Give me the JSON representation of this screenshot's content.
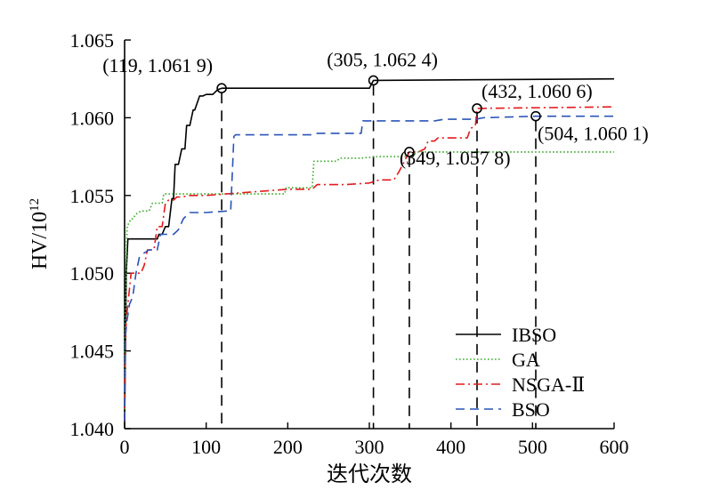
{
  "chart_data": {
    "type": "line",
    "xlabel": "迭代次数",
    "ylabel": "HV/10",
    "ylabel_sup": "12",
    "xlim": [
      0,
      600
    ],
    "ylim": [
      1.04,
      1.065
    ],
    "x_ticks": [
      "0",
      "100",
      "200",
      "300",
      "400",
      "500",
      "600"
    ],
    "y_ticks": [
      "1.040",
      "1.045",
      "1.050",
      "1.055",
      "1.060",
      "1.065"
    ],
    "grid": false,
    "legend_position": "bottom-right",
    "series": [
      {
        "name": "IBSO",
        "color": "#000000",
        "dash": "solid",
        "x": [
          0,
          1,
          2,
          4,
          40,
          42,
          46,
          50,
          54,
          58,
          60,
          62,
          66,
          70,
          74,
          76,
          80,
          84,
          86,
          92,
          96,
          100,
          108,
          114,
          119,
          300,
          305,
          600
        ],
        "y": [
          1.0405,
          1.045,
          1.05,
          1.0522,
          1.0522,
          1.0525,
          1.0525,
          1.053,
          1.053,
          1.0548,
          1.0548,
          1.057,
          1.057,
          1.058,
          1.058,
          1.0595,
          1.0595,
          1.0605,
          1.0605,
          1.0614,
          1.0614,
          1.0615,
          1.0615,
          1.0618,
          1.0619,
          1.0619,
          1.0624,
          1.0625
        ]
      },
      {
        "name": "GA",
        "color": "#3aab2a",
        "dash": "dotted",
        "x": [
          0,
          1,
          3,
          8,
          10,
          14,
          20,
          30,
          34,
          46,
          48,
          100,
          150,
          196,
          198,
          230,
          232,
          260,
          264,
          290,
          310,
          350,
          360,
          600
        ],
        "y": [
          1.041,
          1.048,
          1.053,
          1.0535,
          1.0535,
          1.0538,
          1.054,
          1.054,
          1.0545,
          1.0545,
          1.0551,
          1.0551,
          1.0551,
          1.0551,
          1.0555,
          1.0555,
          1.0572,
          1.0572,
          1.0574,
          1.0574,
          1.0575,
          1.0575,
          1.0578,
          1.0578
        ]
      },
      {
        "name": "NSGA-Ⅱ",
        "color": "#e41a1c",
        "dash": "dashdot",
        "x": [
          0,
          1,
          2,
          3,
          4,
          6,
          8,
          10,
          20,
          24,
          28,
          36,
          40,
          46,
          50,
          54,
          60,
          64,
          70,
          80,
          100,
          150,
          200,
          230,
          236,
          270,
          300,
          312,
          330,
          336,
          346,
          349,
          360,
          368,
          372,
          380,
          384,
          390,
          420,
          424,
          430,
          432,
          600
        ],
        "y": [
          1.0405,
          1.045,
          1.047,
          1.0475,
          1.048,
          1.049,
          1.05,
          1.05,
          1.05,
          1.0505,
          1.0515,
          1.0515,
          1.053,
          1.053,
          1.0545,
          1.0547,
          1.0547,
          1.0549,
          1.0549,
          1.055,
          1.055,
          1.0552,
          1.0554,
          1.0554,
          1.0557,
          1.0557,
          1.0558,
          1.056,
          1.056,
          1.0565,
          1.0575,
          1.0578,
          1.0578,
          1.058,
          1.0585,
          1.0585,
          1.0587,
          1.0587,
          1.0587,
          1.0593,
          1.0595,
          1.0606,
          1.0607
        ]
      },
      {
        "name": "BSO",
        "color": "#2a54b8",
        "dash": "dashed",
        "x": [
          0,
          1,
          3,
          6,
          10,
          14,
          18,
          24,
          30,
          40,
          44,
          50,
          60,
          66,
          72,
          80,
          100,
          126,
          130,
          134,
          136,
          150,
          200,
          230,
          236,
          280,
          290,
          292,
          300,
          304,
          380,
          392,
          430,
          440,
          504,
          600
        ],
        "y": [
          1.0405,
          1.046,
          1.047,
          1.048,
          1.0485,
          1.05,
          1.051,
          1.0513,
          1.0515,
          1.0515,
          1.0525,
          1.0525,
          1.0525,
          1.0528,
          1.0535,
          1.0539,
          1.0539,
          1.054,
          1.054,
          1.0588,
          1.0589,
          1.0589,
          1.0589,
          1.0589,
          1.059,
          1.059,
          1.059,
          1.0598,
          1.0598,
          1.0598,
          1.0598,
          1.0599,
          1.0599,
          1.06,
          1.0601,
          1.0601
        ]
      }
    ],
    "annotations": [
      {
        "x": 119,
        "y": 1.0619,
        "text": "(119, 1.061 9)",
        "anchor": "above-left"
      },
      {
        "x": 305,
        "y": 1.0624,
        "text": "(305, 1.062 4)",
        "anchor": "above"
      },
      {
        "x": 432,
        "y": 1.0606,
        "text": "(432, 1.060 6)",
        "anchor": "above-right"
      },
      {
        "x": 504,
        "y": 1.0601,
        "text": "(504, 1.060 1)",
        "anchor": "below-right"
      },
      {
        "x": 349,
        "y": 1.0578,
        "text": "(349, 1.057 8)",
        "anchor": "right"
      }
    ]
  }
}
